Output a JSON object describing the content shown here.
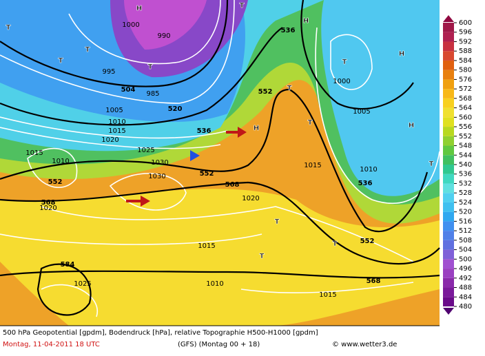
{
  "map": {
    "labels": [
      "504",
      "520",
      "536",
      "552",
      "568",
      "584",
      "552",
      "568",
      "552",
      "568",
      "536",
      "536",
      "552",
      "1000",
      "995",
      "985",
      "990",
      "1005",
      "1010",
      "1015",
      "1020",
      "1025",
      "1030",
      "1010",
      "1015",
      "1020",
      "1025",
      "1030",
      "1015",
      "1010",
      "1000",
      "1005",
      "1010",
      "1015",
      "1020",
      "1015",
      "T",
      "T",
      "T",
      "H",
      "H",
      "T",
      "T",
      "H",
      "T",
      "T",
      "T",
      "H",
      "H",
      "T",
      "T",
      "T",
      "T"
    ],
    "colorbar": {
      "ticks": [
        480,
        484,
        488,
        492,
        496,
        500,
        504,
        508,
        512,
        516,
        520,
        524,
        528,
        532,
        536,
        540,
        544,
        548,
        552,
        556,
        560,
        564,
        568,
        572,
        576,
        580,
        584,
        588,
        592,
        596,
        600
      ],
      "colors": [
        "#6a0a8a",
        "#7a1a9a",
        "#8a2aaa",
        "#9a40c0",
        "#a050d0",
        "#8060d8",
        "#6070e0",
        "#5080e8",
        "#4090f0",
        "#30a8f0",
        "#40c0f0",
        "#50d0f0",
        "#60e0e0",
        "#40d8c0",
        "#30c890",
        "#40c060",
        "#60c840",
        "#90d030",
        "#b8d820",
        "#e0e020",
        "#f0e030",
        "#f8d020",
        "#f8b818",
        "#f0a010",
        "#e88010",
        "#e06010",
        "#d84830",
        "#c83040",
        "#b02050",
        "#a01848"
      ]
    },
    "footer": {
      "line1": "500 hPa Geopotential [gpdm], Bodendruck [hPa], relative Topographie H500-H1000 [gpdm]",
      "date": "Montag, 11-04-2011   18 UTC",
      "run": "(GFS)  (Montag 00 + 18)",
      "credit": "© www.wetter3.de"
    }
  }
}
